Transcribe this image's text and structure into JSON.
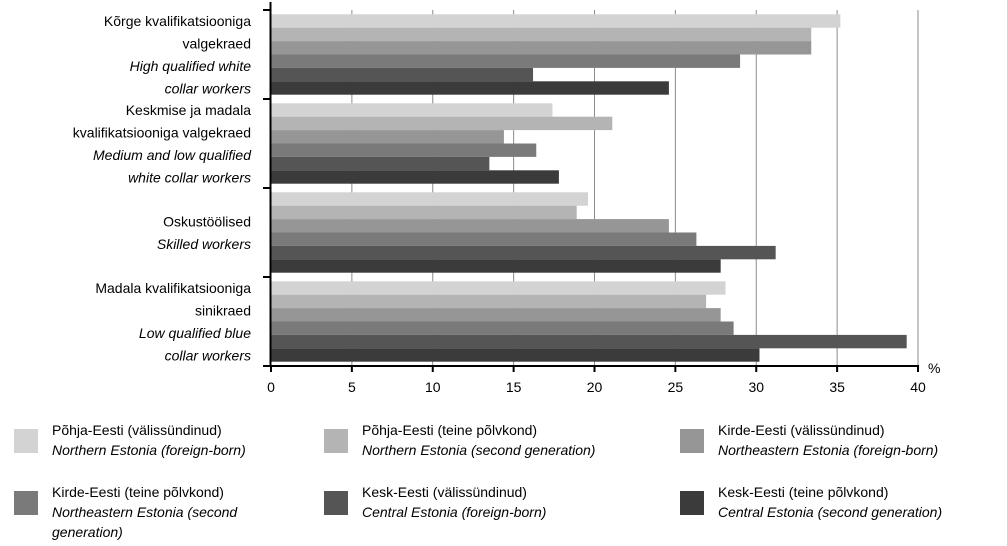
{
  "chart_data": {
    "type": "bar",
    "orientation": "horizontal",
    "unit": "%",
    "xlim": [
      0,
      40
    ],
    "xticks": [
      0,
      5,
      10,
      15,
      20,
      25,
      30,
      35,
      40
    ],
    "grid": "vertical",
    "legend_position": "bottom",
    "categories": [
      {
        "et": [
          "Kõrge kvalifikatsiooniga",
          "valgekraed"
        ],
        "en": [
          "High qualified white",
          "collar workers"
        ]
      },
      {
        "et": [
          "Keskmise ja madala",
          "kvalifikatsiooniga valgekraed"
        ],
        "en": [
          "Medium and low qualified",
          "white collar workers"
        ]
      },
      {
        "et": [
          "Oskustöölised"
        ],
        "en": [
          "Skilled workers"
        ]
      },
      {
        "et": [
          "Madala kvalifikatsiooniga",
          "sinikraed"
        ],
        "en": [
          "Low qualified blue",
          "collar workers"
        ]
      }
    ],
    "series": [
      {
        "name_et": "Põhja-Eesti (välissündinud)",
        "name_en": "Northern Estonia (foreign-born)",
        "color": "#d3d3d3",
        "values": [
          35.2,
          17.4,
          19.6,
          28.1
        ]
      },
      {
        "name_et": "Põhja-Eesti (teine põlvkond)",
        "name_en": "Northern Estonia (second generation)",
        "color": "#b4b4b4",
        "values": [
          33.4,
          21.1,
          18.9,
          26.9
        ]
      },
      {
        "name_et": "Kirde-Eesti (välissündinud)",
        "name_en": "Northeastern Estonia (foreign-born)",
        "color": "#969696",
        "values": [
          33.4,
          14.4,
          24.6,
          27.8
        ]
      },
      {
        "name_et": "Kirde-Eesti (teine põlvkond)",
        "name_en": "Northeastern Estonia (second generation)",
        "color": "#7a7a7a",
        "values": [
          29.0,
          16.4,
          26.3,
          28.6
        ]
      },
      {
        "name_et": "Kesk-Eesti (välissündinud)",
        "name_en": "Central Estonia (foreign-born)",
        "color": "#555555",
        "values": [
          16.2,
          13.5,
          31.2,
          39.3
        ]
      },
      {
        "name_et": "Kesk-Eesti (teine põlvkond)",
        "name_en": "Central Estonia (second generation)",
        "color": "#3b3b3b",
        "values": [
          24.6,
          17.8,
          27.8,
          30.2
        ]
      }
    ]
  }
}
